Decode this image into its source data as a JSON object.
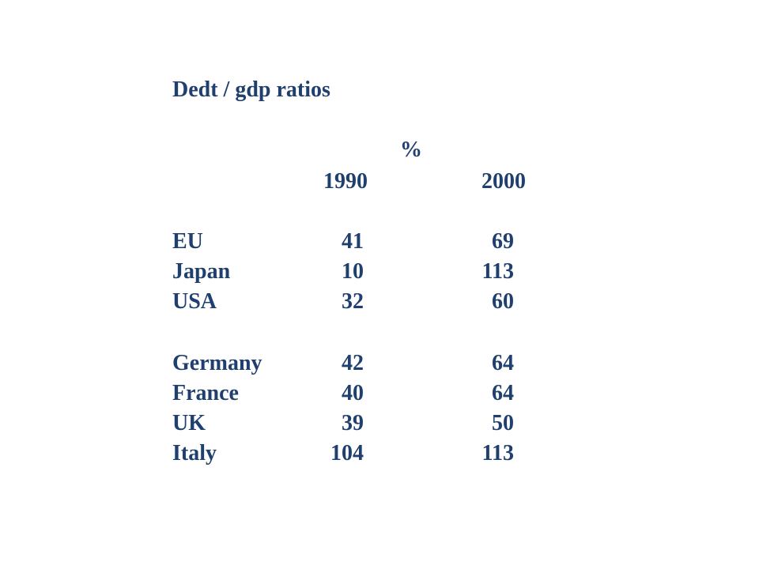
{
  "title": "Dedt / gdp ratios",
  "unit": "%",
  "columns": [
    "1990",
    "2000"
  ],
  "groups": [
    {
      "rows": [
        {
          "label": "EU",
          "v1990": "41",
          "v2000": "69"
        },
        {
          "label": "Japan",
          "v1990": "10",
          "v2000": "113"
        },
        {
          "label": "USA",
          "v1990": "32",
          "v2000": "60"
        }
      ]
    },
    {
      "rows": [
        {
          "label": "Germany",
          "v1990": "42",
          "v2000": "64"
        },
        {
          "label": "France",
          "v1990": "40",
          "v2000": "64"
        },
        {
          "label": "UK",
          "v1990": "39",
          "v2000": "50"
        },
        {
          "label": "Italy",
          "v1990": "104",
          "v2000": "113"
        }
      ]
    }
  ],
  "colors": {
    "text": "#1f3f6e",
    "background": "#ffffff"
  }
}
